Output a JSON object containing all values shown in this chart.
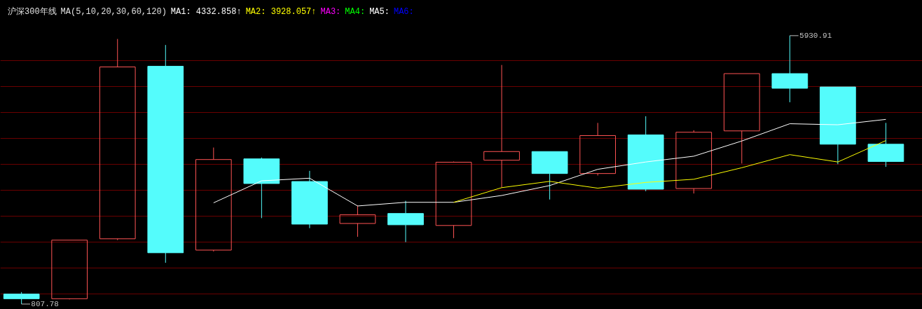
{
  "chart_data": {
    "type": "candlestick",
    "title": "沪深300年线",
    "subtitle": "MA(5,10,20,30,60,120)",
    "categories": [
      null,
      null,
      null,
      null,
      null,
      null,
      null,
      null,
      null,
      null,
      null,
      null,
      null,
      null,
      null,
      null,
      null,
      null,
      null
    ],
    "ohlc": [
      [
        998.7,
        1036.8,
        807.78,
        909.7
      ],
      [
        910,
        2028,
        897,
        2028
      ],
      [
        2053.7,
        5867.3,
        2028.3,
        5333.4
      ],
      [
        5346.1,
        5752.9,
        1596.1,
        1786.8
      ],
      [
        1837.6,
        3795.3,
        1812.2,
        3566.5
      ],
      [
        3579.2,
        3604.6,
        2447.8,
        3108.8
      ],
      [
        3147.0,
        3350.4,
        2257.1,
        2333.4
      ],
      [
        2346.1,
        2689.4,
        2091.9,
        2511.4
      ],
      [
        2536.8,
        2778.3,
        1990.2,
        2320.7
      ],
      [
        2308.0,
        3528.3,
        2066.5,
        3515.6
      ],
      [
        3553.8,
        5371.6,
        3032.6,
        3719.0
      ],
      [
        3719.0,
        3719.0,
        2803.7,
        3299.5
      ],
      [
        3299.5,
        4265.6,
        3261.4,
        4024.1
      ],
      [
        4036.8,
        4392.8,
        2962.3,
        3000.4
      ],
      [
        3013.1,
        4125.8,
        2918.2,
        4087.7
      ],
      [
        4113.1,
        5206.3,
        3490.2,
        5206.3
      ],
      [
        5206.3,
        5930.91,
        4659.7,
        4926.7
      ],
      [
        4952.1,
        4952.1,
        3477.5,
        3858.8
      ],
      [
        3858.8,
        4265.6,
        3426.6,
        3528.3
      ]
    ],
    "colors": [
      "#54fcfc",
      "#ff5454",
      "#ff5454",
      "#54fcfc",
      "#ff5454",
      "#54fcfc",
      "#54fcfc",
      "#ff5454",
      "#54fcfc",
      "#ff5454",
      "#ff5454",
      "#54fcfc",
      "#ff5454",
      "#54fcfc",
      "#ff5454",
      "#ff5454",
      "#54fcfc",
      "#54fcfc",
      "#54fcfc"
    ],
    "series": [
      {
        "name": "MA1: 4332.858↑",
        "type": "line",
        "color": "#ffffff",
        "values": [
          null,
          null,
          null,
          null,
          2740,
          3160,
          3210,
          2680,
          2750,
          2750,
          2880,
          3070,
          3380,
          3520,
          3630,
          3920,
          4250,
          4230,
          4332.858
        ]
      },
      {
        "name": "MA2: 3928.057↑",
        "type": "line",
        "color": "#ffff00",
        "values": [
          null,
          null,
          null,
          null,
          null,
          null,
          null,
          null,
          null,
          2750,
          3030,
          3150,
          3020,
          3130,
          3190,
          3410,
          3660,
          3520,
          3928.057
        ]
      },
      {
        "name": "MA3:",
        "type": "line",
        "color": "#ff00ff",
        "values": [
          null,
          null,
          null,
          null,
          null,
          null,
          null,
          null,
          null,
          null,
          null,
          null,
          null,
          null,
          null,
          null,
          null,
          null,
          null
        ]
      },
      {
        "name": "MA4:",
        "type": "line",
        "color": "#00ff00",
        "values": [
          null,
          null,
          null,
          null,
          null,
          null,
          null,
          null,
          null,
          null,
          null,
          null,
          null,
          null,
          null,
          null,
          null,
          null,
          null
        ]
      },
      {
        "name": "MA5:",
        "type": "line",
        "color": "#ffffff",
        "values": [
          null,
          null,
          null,
          null,
          null,
          null,
          null,
          null,
          null,
          null,
          null,
          null,
          null,
          null,
          null,
          null,
          null,
          null,
          null
        ]
      },
      {
        "name": "MA6:",
        "type": "line",
        "color": "#0000ff",
        "values": [
          null,
          null,
          null,
          null,
          null,
          null,
          null,
          null,
          null,
          null,
          null,
          null,
          null,
          null,
          null,
          null,
          null,
          null,
          null
        ]
      }
    ],
    "ylim": [
      600,
      6150
    ],
    "yticks": [
      {
        "value": 998,
        "label": null
      },
      {
        "value": 1494,
        "label": null
      },
      {
        "value": 1990,
        "label": null
      },
      {
        "value": 2486,
        "label": null
      },
      {
        "value": 2982,
        "label": null
      },
      {
        "value": 3477,
        "label": null
      },
      {
        "value": 3973,
        "label": null
      },
      {
        "value": 4468,
        "label": null
      },
      {
        "value": 4964,
        "label": null
      },
      {
        "value": 5460,
        "label": null
      }
    ],
    "grid": "y",
    "tick_labels": false,
    "legend": "top left",
    "annotations": [
      "5930.91",
      "807.78"
    ]
  }
}
